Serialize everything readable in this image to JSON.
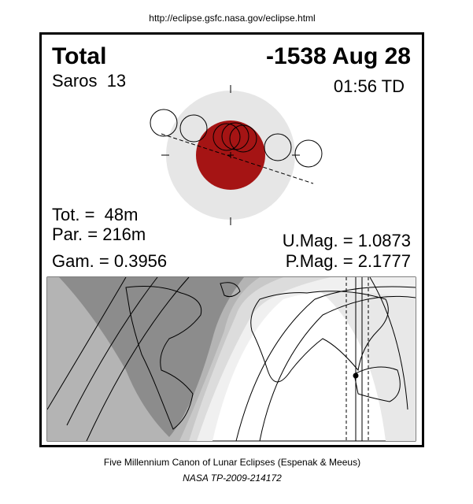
{
  "header": {
    "url": "http://eclipse.gsfc.nasa.gov/eclipse.html"
  },
  "eclipse": {
    "type": "Total",
    "date": "-1538 Aug 28",
    "saros": "Saros  13",
    "time": "01:56 TD",
    "tot": "Tot. =  48m",
    "par": "Par. = 216m",
    "gam": "Gam. = 0.3956",
    "umag": "U.Mag. = 1.0873",
    "pmag": "P.Mag. = 2.1777"
  },
  "footer": {
    "title": "Five Millennium Canon of Lunar Eclipses (Espenak & Meeus)",
    "reference": "NASA TP-2009-214172"
  }
}
